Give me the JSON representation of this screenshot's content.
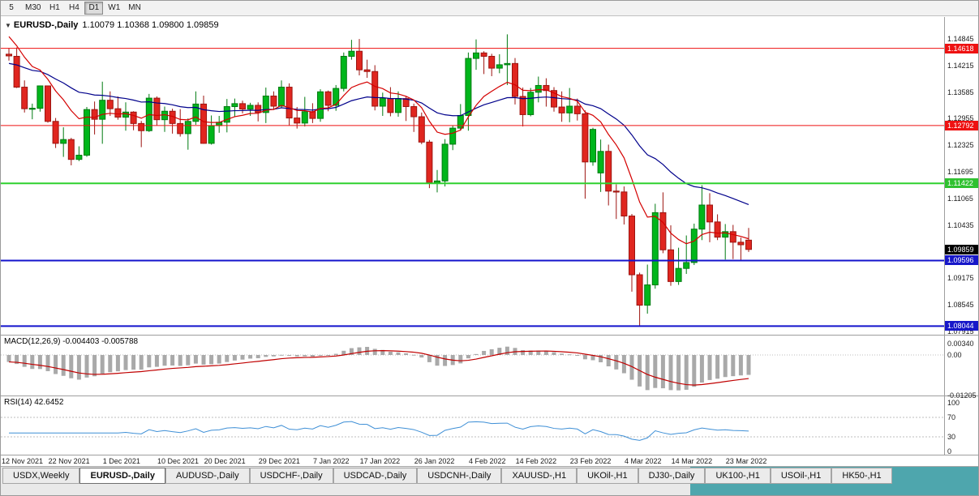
{
  "toolbar": {
    "buttons": [
      {
        "label": "5",
        "active": false
      },
      {
        "label": "M30",
        "active": false
      },
      {
        "label": "H1",
        "active": false
      },
      {
        "label": "H4",
        "active": false
      },
      {
        "label": "D1",
        "active": true
      },
      {
        "label": "W1",
        "active": false
      },
      {
        "label": "MN",
        "active": false
      }
    ]
  },
  "chart_header": {
    "dropdown_icon": "▼",
    "title": "EURUSD-,Daily",
    "ohlc": "1.10079 1.10368 1.09800 1.09859"
  },
  "price_axis": {
    "gridline_labels": [
      {
        "price": 1.14845,
        "text": "1.14845"
      },
      {
        "price": 1.14215,
        "text": "1.14215"
      },
      {
        "price": 1.13585,
        "text": "1.13585"
      },
      {
        "price": 1.12955,
        "text": "1.12955"
      },
      {
        "price": 1.12325,
        "text": "1.12325"
      },
      {
        "price": 1.11695,
        "text": "1.11695"
      },
      {
        "price": 1.11065,
        "text": "1.11065"
      },
      {
        "price": 1.10435,
        "text": "1.10435"
      },
      {
        "price": 1.09175,
        "text": "1.09175"
      },
      {
        "price": 1.08545,
        "text": "1.08545"
      },
      {
        "price": 1.07915,
        "text": "1.07915"
      }
    ],
    "level_badges": [
      {
        "price": 1.14618,
        "text": "1.14618",
        "color": "#ee1111"
      },
      {
        "price": 1.12792,
        "text": "1.12792",
        "color": "#ee1111"
      },
      {
        "price": 1.11422,
        "text": "1.11422",
        "color": "#2fc12f"
      },
      {
        "price": 1.09859,
        "text": "1.09859",
        "color": "#000000"
      },
      {
        "price": 1.09596,
        "text": "1.09596",
        "color": "#1717c9"
      },
      {
        "price": 1.08044,
        "text": "1.08044",
        "color": "#1717c9"
      }
    ]
  },
  "macd_panel": {
    "label": "MACD(12,26,9)",
    "values": "-0.004403 -0.005788",
    "axis_labels": [
      {
        "value": 0.0034,
        "text": "0.00340"
      },
      {
        "value": 0,
        "text": "0.00"
      },
      {
        "value": -0.01205,
        "text": "-0.01205"
      }
    ]
  },
  "rsi_panel": {
    "label": "RSI(14)",
    "value": "42.6452",
    "axis_labels": [
      {
        "value": 100,
        "text": "100"
      },
      {
        "value": 70,
        "text": "70"
      },
      {
        "value": 30,
        "text": "30"
      },
      {
        "value": 0,
        "text": "0"
      }
    ],
    "levels": [
      70,
      30
    ]
  },
  "date_axis": {
    "labels": [
      {
        "index": 0,
        "text": "12 Nov 2021"
      },
      {
        "index": 6,
        "text": "22 Nov 2021"
      },
      {
        "index": 13,
        "text": "1 Dec 2021"
      },
      {
        "index": 20,
        "text": "10 Dec 2021"
      },
      {
        "index": 26,
        "text": "20 Dec 2021"
      },
      {
        "index": 33,
        "text": "29 Dec 2021"
      },
      {
        "index": 40,
        "text": "7 Jan 2022"
      },
      {
        "index": 46,
        "text": "17 Jan 2022"
      },
      {
        "index": 53,
        "text": "26 Jan 2022"
      },
      {
        "index": 60,
        "text": "4 Feb 2022"
      },
      {
        "index": 66,
        "text": "14 Feb 2022"
      },
      {
        "index": 73,
        "text": "23 Feb 2022"
      },
      {
        "index": 80,
        "text": "4 Mar 2022"
      },
      {
        "index": 86,
        "text": "14 Mar 2022"
      },
      {
        "index": 93,
        "text": "23 Mar 2022"
      }
    ]
  },
  "tabs": [
    {
      "label": "USDX,Weekly",
      "active": false
    },
    {
      "label": "EURUSD-,Daily",
      "active": true
    },
    {
      "label": "AUDUSD-,Daily",
      "active": false
    },
    {
      "label": "USDCHF-,Daily",
      "active": false
    },
    {
      "label": "USDCAD-,Daily",
      "active": false
    },
    {
      "label": "USDCNH-,Daily",
      "active": false
    },
    {
      "label": "XAUUSD-,H1",
      "active": false
    },
    {
      "label": "UKOil-,H1",
      "active": false
    },
    {
      "label": "DJ30-,Daily",
      "active": false
    },
    {
      "label": "UK100-,H1",
      "active": false
    },
    {
      "label": "USOil-,H1",
      "active": false
    },
    {
      "label": "HK50-,H1",
      "active": false
    }
  ],
  "chart_data": {
    "type": "candlestick",
    "symbol": "EURUSD-",
    "timeframe": "Daily",
    "current_bar": {
      "open": 1.10079,
      "high": 1.10368,
      "low": 1.098,
      "close": 1.09859
    },
    "y_range": [
      1.0786,
      1.1536
    ],
    "horizontal_lines": [
      {
        "price": 1.14618,
        "color": "#ee1111",
        "width": 1
      },
      {
        "price": 1.12792,
        "color": "#ee1111",
        "width": 1
      },
      {
        "price": 1.11422,
        "color": "#2fd12f",
        "width": 2
      },
      {
        "price": 1.09596,
        "color": "#1313cc",
        "width": 2
      },
      {
        "price": 1.08044,
        "color": "#1313cc",
        "width": 2
      }
    ],
    "colors": {
      "bull": "#00b61b",
      "bull_border": "#007a10",
      "bear": "#e0261f",
      "bear_border": "#9c1410",
      "ma_fast": "#d40000",
      "ma_slow": "#00008b",
      "macd_hist": "#a9a9a9",
      "macd_signal": "#c00000",
      "rsi_line": "#3e8fd6",
      "dotted_level": "#bcbcbc",
      "separator": "#9e9e9e",
      "tab_teal": "#4ea6ad"
    },
    "indicators": [
      {
        "type": "MACD",
        "params": [
          12,
          26,
          9
        ],
        "current": [
          -0.004403,
          -0.005788
        ]
      },
      {
        "type": "RSI",
        "params": [
          14
        ],
        "current": 42.6452
      }
    ],
    "candles": [
      [
        1.1448,
        1.1463,
        1.1433,
        1.1444
      ],
      [
        1.1443,
        1.1464,
        1.1368,
        1.137
      ],
      [
        1.137,
        1.1386,
        1.131,
        1.1319
      ],
      [
        1.1319,
        1.1331,
        1.1294,
        1.132
      ],
      [
        1.132,
        1.1374,
        1.1312,
        1.1373
      ],
      [
        1.1373,
        1.1374,
        1.1286,
        1.1289
      ],
      [
        1.1289,
        1.1297,
        1.1226,
        1.1237
      ],
      [
        1.1237,
        1.1275,
        1.1205,
        1.1246
      ],
      [
        1.1246,
        1.125,
        1.1185,
        1.1199
      ],
      [
        1.1199,
        1.123,
        1.1195,
        1.1209
      ],
      [
        1.1209,
        1.1323,
        1.1205,
        1.1317
      ],
      [
        1.1317,
        1.1336,
        1.1258,
        1.1294
      ],
      [
        1.1294,
        1.1383,
        1.1236,
        1.1339
      ],
      [
        1.1339,
        1.136,
        1.1302,
        1.1319
      ],
      [
        1.1319,
        1.1348,
        1.1293,
        1.1299
      ],
      [
        1.1299,
        1.1334,
        1.1267,
        1.1311
      ],
      [
        1.1311,
        1.1313,
        1.1268,
        1.1284
      ],
      [
        1.1284,
        1.129,
        1.1228,
        1.1267
      ],
      [
        1.1267,
        1.1354,
        1.1264,
        1.1344
      ],
      [
        1.1344,
        1.1348,
        1.128,
        1.1293
      ],
      [
        1.1293,
        1.1324,
        1.1264,
        1.1313
      ],
      [
        1.1313,
        1.1319,
        1.126,
        1.1284
      ],
      [
        1.1284,
        1.1318,
        1.1253,
        1.126
      ],
      [
        1.126,
        1.1296,
        1.1222,
        1.1289
      ],
      [
        1.1289,
        1.136,
        1.1281,
        1.133
      ],
      [
        1.133,
        1.135,
        1.1236,
        1.1237
      ],
      [
        1.1237,
        1.1303,
        1.1234,
        1.1279
      ],
      [
        1.1279,
        1.1302,
        1.1262,
        1.1287
      ],
      [
        1.1287,
        1.1342,
        1.1263,
        1.1324
      ],
      [
        1.1324,
        1.1343,
        1.1299,
        1.1331
      ],
      [
        1.1331,
        1.1338,
        1.1308,
        1.1318
      ],
      [
        1.1318,
        1.1333,
        1.1302,
        1.1327
      ],
      [
        1.1327,
        1.1334,
        1.1289,
        1.131
      ],
      [
        1.131,
        1.1369,
        1.1285,
        1.1349
      ],
      [
        1.1349,
        1.136,
        1.1316,
        1.1325
      ],
      [
        1.1325,
        1.1386,
        1.1321,
        1.137
      ],
      [
        1.137,
        1.1379,
        1.1279,
        1.1297
      ],
      [
        1.1297,
        1.1323,
        1.1272,
        1.1285
      ],
      [
        1.1285,
        1.1347,
        1.1277,
        1.1312
      ],
      [
        1.1312,
        1.1332,
        1.1285,
        1.1296
      ],
      [
        1.1296,
        1.1365,
        1.1288,
        1.1359
      ],
      [
        1.1359,
        1.1362,
        1.1313,
        1.1327
      ],
      [
        1.1327,
        1.1375,
        1.1314,
        1.1367
      ],
      [
        1.1367,
        1.1452,
        1.136,
        1.1443
      ],
      [
        1.1443,
        1.1482,
        1.1435,
        1.1455
      ],
      [
        1.1455,
        1.1484,
        1.1398,
        1.1411
      ],
      [
        1.1411,
        1.1435,
        1.1392,
        1.1407
      ],
      [
        1.1407,
        1.1422,
        1.1315,
        1.1325
      ],
      [
        1.1325,
        1.1357,
        1.1302,
        1.1343
      ],
      [
        1.1343,
        1.137,
        1.1301,
        1.131
      ],
      [
        1.131,
        1.136,
        1.13,
        1.1343
      ],
      [
        1.1343,
        1.1348,
        1.129,
        1.1324
      ],
      [
        1.1324,
        1.1331,
        1.1264,
        1.13
      ],
      [
        1.13,
        1.131,
        1.1235,
        1.124
      ],
      [
        1.124,
        1.1245,
        1.1131,
        1.1144
      ],
      [
        1.1144,
        1.1174,
        1.1121,
        1.1148
      ],
      [
        1.1148,
        1.1247,
        1.1135,
        1.1235
      ],
      [
        1.1235,
        1.1279,
        1.1221,
        1.1273
      ],
      [
        1.1273,
        1.133,
        1.1267,
        1.1303
      ],
      [
        1.1303,
        1.1452,
        1.1267,
        1.1438
      ],
      [
        1.1438,
        1.1483,
        1.1411,
        1.1451
      ],
      [
        1.1451,
        1.1455,
        1.1401,
        1.1443
      ],
      [
        1.1443,
        1.1449,
        1.1396,
        1.1415
      ],
      [
        1.1415,
        1.1448,
        1.1403,
        1.1423
      ],
      [
        1.1423,
        1.1495,
        1.1375,
        1.1426
      ],
      [
        1.1426,
        1.1439,
        1.1329,
        1.1348
      ],
      [
        1.1348,
        1.1369,
        1.1277,
        1.1305
      ],
      [
        1.1305,
        1.1368,
        1.1301,
        1.1358
      ],
      [
        1.1358,
        1.1395,
        1.1334,
        1.1374
      ],
      [
        1.1374,
        1.1391,
        1.1324,
        1.1362
      ],
      [
        1.1362,
        1.137,
        1.1312,
        1.1323
      ],
      [
        1.1323,
        1.136,
        1.1288,
        1.1309
      ],
      [
        1.1309,
        1.1368,
        1.1287,
        1.1325
      ],
      [
        1.1325,
        1.1343,
        1.1291,
        1.1307
      ],
      [
        1.1307,
        1.1315,
        1.1106,
        1.1193
      ],
      [
        1.1193,
        1.1274,
        1.1184,
        1.127
      ],
      [
        1.1167,
        1.1246,
        1.1122,
        1.1218
      ],
      [
        1.1218,
        1.1234,
        1.109,
        1.1124
      ],
      [
        1.1124,
        1.114,
        1.1058,
        1.1122
      ],
      [
        1.1122,
        1.1135,
        1.1045,
        1.1065
      ],
      [
        1.1065,
        1.107,
        1.0886,
        1.0926
      ],
      [
        1.0926,
        1.0931,
        1.0806,
        1.0854
      ],
      [
        1.0854,
        1.095,
        1.0834,
        1.0902
      ],
      [
        1.0902,
        1.1094,
        1.0893,
        1.1073
      ],
      [
        1.1073,
        1.1121,
        1.0977,
        1.0985
      ],
      [
        1.0985,
        1.1043,
        1.09,
        1.091
      ],
      [
        1.091,
        1.099,
        1.0902,
        1.0941
      ],
      [
        1.0941,
        1.1019,
        1.0928,
        1.0955
      ],
      [
        1.0955,
        1.1047,
        1.0949,
        1.1034
      ],
      [
        1.1034,
        1.1138,
        1.1008,
        1.1091
      ],
      [
        1.1091,
        1.1119,
        1.1003,
        1.1051
      ],
      [
        1.1051,
        1.1069,
        1.1008,
        1.1015
      ],
      [
        1.1015,
        1.1046,
        1.0962,
        1.1028
      ],
      [
        1.1028,
        1.1044,
        1.0963,
        1.1003
      ],
      [
        1.1003,
        1.1014,
        1.096,
        1.0997
      ],
      [
        1.10079,
        1.10368,
        1.098,
        1.09859
      ]
    ]
  }
}
